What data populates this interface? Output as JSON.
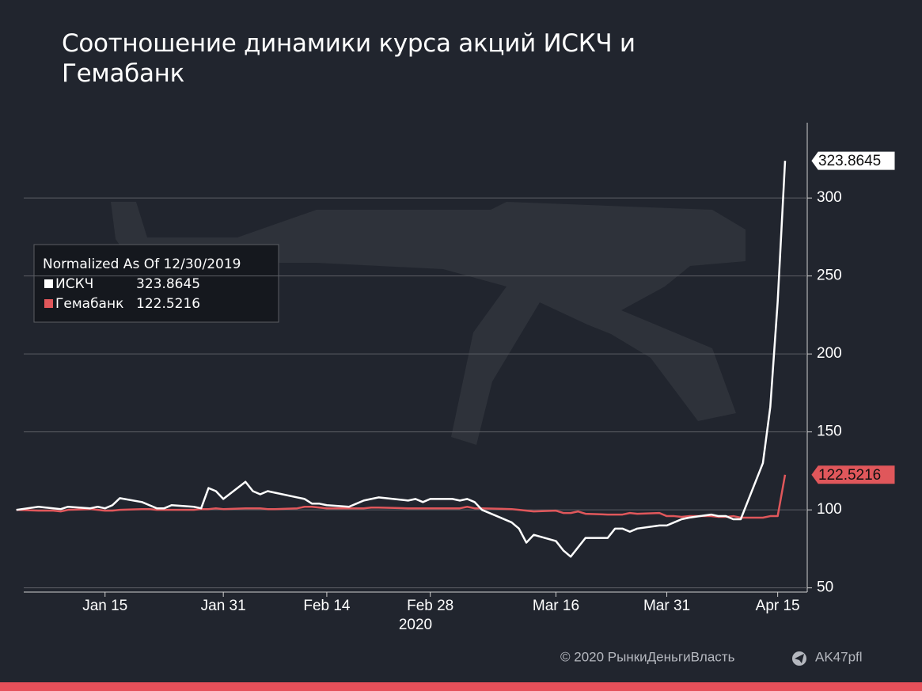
{
  "chart_data": {
    "type": "line",
    "title": "Соотношение динамики курса акций ИСКЧ и Гемабанк",
    "legend_title": "Normalized As Of 12/30/2019",
    "x_year_label": "2020",
    "footer": {
      "copyright": "© 2020  РынкиДеньгиВласть",
      "channel": "AK47pfl"
    },
    "x": [
      "2020-01-03",
      "2020-01-06",
      "2020-01-08",
      "2020-01-09",
      "2020-01-10",
      "2020-01-13",
      "2020-01-14",
      "2020-01-15",
      "2020-01-16",
      "2020-01-17",
      "2020-01-20",
      "2020-01-21",
      "2020-01-22",
      "2020-01-23",
      "2020-01-24",
      "2020-01-27",
      "2020-01-28",
      "2020-01-29",
      "2020-01-30",
      "2020-01-31",
      "2020-02-03",
      "2020-02-04",
      "2020-02-05",
      "2020-02-06",
      "2020-02-07",
      "2020-02-10",
      "2020-02-11",
      "2020-02-12",
      "2020-02-13",
      "2020-02-14",
      "2020-02-17",
      "2020-02-18",
      "2020-02-19",
      "2020-02-20",
      "2020-02-21",
      "2020-02-25",
      "2020-02-26",
      "2020-02-27",
      "2020-02-28",
      "2020-03-02",
      "2020-03-03",
      "2020-03-04",
      "2020-03-05",
      "2020-03-06",
      "2020-03-10",
      "2020-03-11",
      "2020-03-12",
      "2020-03-13",
      "2020-03-16",
      "2020-03-17",
      "2020-03-18",
      "2020-03-19",
      "2020-03-20",
      "2020-03-23",
      "2020-03-24",
      "2020-03-25",
      "2020-03-26",
      "2020-03-27",
      "2020-03-30",
      "2020-03-31",
      "2020-04-01",
      "2020-04-02",
      "2020-04-03",
      "2020-04-06",
      "2020-04-07",
      "2020-04-08",
      "2020-04-09",
      "2020-04-10",
      "2020-04-13",
      "2020-04-14",
      "2020-04-15",
      "2020-04-16"
    ],
    "series": [
      {
        "name": "ИСКЧ",
        "color": "#ffffff",
        "values": [
          100,
          102,
          101,
          100.5,
          102,
          101,
          102,
          101,
          103,
          107.5,
          105,
          103,
          101,
          101,
          103,
          102,
          101,
          114,
          112,
          107,
          118,
          112,
          110,
          112,
          111,
          108,
          107,
          104,
          104,
          103,
          102,
          104,
          106,
          107,
          108,
          106,
          107,
          105,
          107,
          107,
          106,
          107,
          105,
          100,
          92,
          88,
          79,
          84,
          80,
          74,
          70,
          76,
          82,
          82,
          88,
          88,
          86,
          88,
          90,
          90,
          92,
          94,
          95,
          97,
          96,
          96,
          94,
          94,
          130,
          166,
          233.5,
          323.8645
        ]
      },
      {
        "name": "Гемабанк",
        "color": "#e0575b",
        "values": [
          100,
          99.5,
          99.5,
          99,
          100,
          100.5,
          100,
          99.5,
          99.5,
          100,
          100.5,
          100.5,
          100,
          100,
          100,
          100,
          100.5,
          100.5,
          101,
          100.5,
          101,
          101,
          101,
          100.5,
          100.5,
          101,
          102,
          102,
          101.5,
          101,
          101,
          101,
          101,
          101.5,
          101.5,
          101,
          101,
          101,
          101,
          101,
          101,
          102,
          101,
          101,
          100.5,
          100,
          99.5,
          99,
          99.5,
          98,
          98,
          99,
          97.5,
          97,
          97,
          97,
          98,
          97.5,
          98,
          96,
          96,
          95.5,
          96,
          96,
          95.5,
          95.5,
          96,
          95,
          95,
          96,
          96,
          122.5216
        ]
      }
    ],
    "xlim": [
      "2020-01-04",
      "2020-04-19"
    ],
    "xticks": [
      {
        "value": "2020-01-15",
        "label": "Jan 15"
      },
      {
        "value": "2020-01-31",
        "label": "Jan 31"
      },
      {
        "value": "2020-02-14",
        "label": "Feb 14"
      },
      {
        "value": "2020-02-28",
        "label": "Feb 28"
      },
      {
        "value": "2020-03-16",
        "label": "Mar 16"
      },
      {
        "value": "2020-03-31",
        "label": "Mar 31"
      },
      {
        "value": "2020-04-15",
        "label": "Apr 15"
      }
    ],
    "ylim": [
      47.3,
      348.3
    ],
    "yticks": [
      50,
      100,
      150,
      200,
      250,
      300
    ],
    "grid": true
  }
}
